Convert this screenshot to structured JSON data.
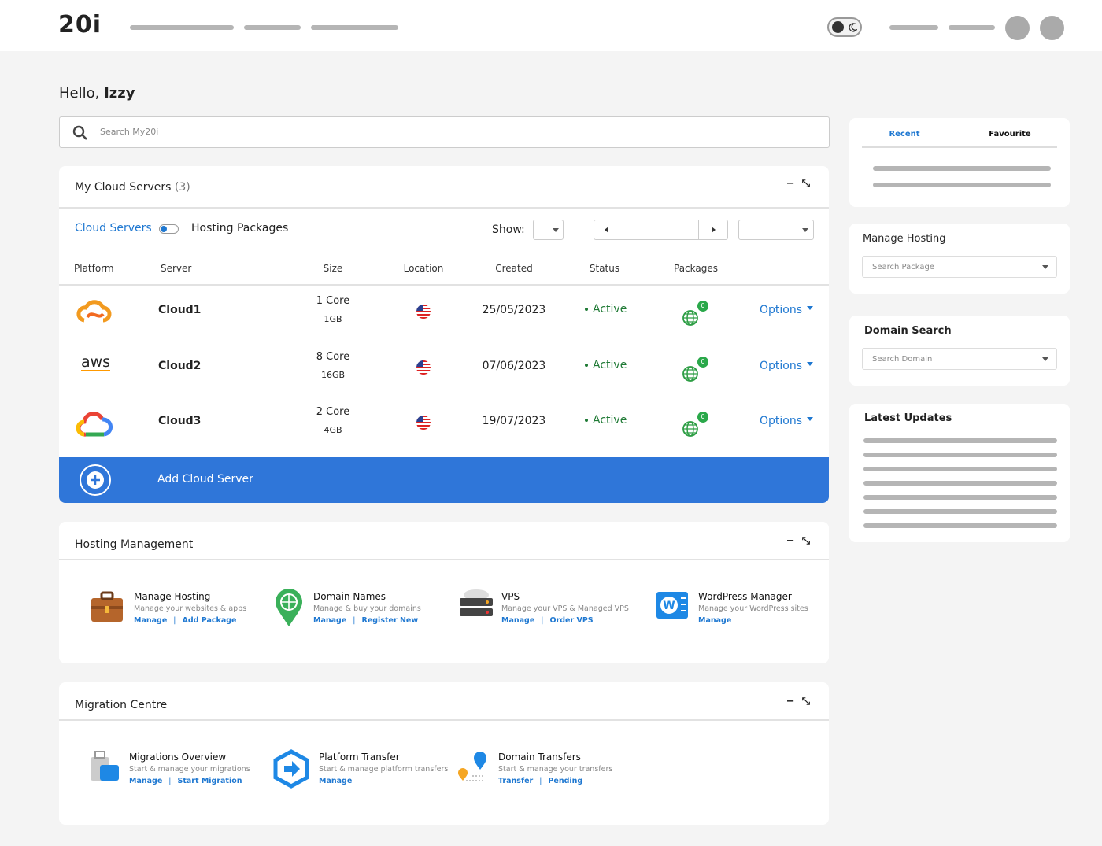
{
  "header": {
    "logo": "20i"
  },
  "greeting": {
    "prefix": "Hello,",
    "name": "Izzy"
  },
  "search": {
    "placeholder": "Search My20i"
  },
  "cloud_servers": {
    "title": "My Cloud Servers",
    "count": "(3)",
    "toggle_left": "Cloud Servers",
    "toggle_right": "Hosting Packages",
    "show_label": "Show:",
    "columns": [
      "Platform",
      "Server",
      "Size",
      "Location",
      "Created",
      "Status",
      "Packages"
    ],
    "rows": [
      {
        "server": "Cloud1",
        "cores": "1 Core",
        "memory": "1GB",
        "created": "25/05/2023",
        "status": "Active",
        "packages": "0",
        "options": "Options"
      },
      {
        "logo_text": "aws",
        "server": "Cloud2",
        "cores": "8 Core",
        "memory": "16GB",
        "created": "07/06/2023",
        "status": "Active",
        "packages": "0",
        "options": "Options"
      },
      {
        "server": "Cloud3",
        "cores": "2 Core",
        "memory": "4GB",
        "created": "19/07/2023",
        "status": "Active",
        "packages": "0",
        "options": "Options"
      }
    ],
    "add_label": "Add Cloud Server"
  },
  "hosting_management": {
    "title": "Hosting Management",
    "items": [
      {
        "title": "Manage Hosting",
        "description": "Manage your websites & apps",
        "links": [
          "Manage",
          "Add Package"
        ]
      },
      {
        "title": "Domain Names",
        "description": "Manage & buy your domains",
        "links": [
          "Manage",
          "Register New"
        ]
      },
      {
        "title": "VPS",
        "description": "Manage your VPS & Managed VPS",
        "links": [
          "Manage",
          "Order VPS"
        ]
      },
      {
        "title": "WordPress Manager",
        "description": "Manage your WordPress sites",
        "links": [
          "Manage"
        ]
      }
    ]
  },
  "migration_centre": {
    "title": "Migration Centre",
    "items": [
      {
        "title": "Migrations Overview",
        "description": "Start & manage your migrations",
        "links": [
          "Manage",
          "Start Migration"
        ]
      },
      {
        "title": "Platform Transfer",
        "description": "Start & manage platform transfers",
        "links": [
          "Manage"
        ]
      },
      {
        "title": "Domain Transfers",
        "description": "Start & manage your transfers",
        "links": [
          "Transfer",
          "Pending"
        ]
      }
    ]
  },
  "sidebar": {
    "tabs": [
      "Recent",
      "Favourite"
    ],
    "manage_hosting": {
      "title": "Manage Hosting",
      "placeholder": "Search Package"
    },
    "domain_search": {
      "title": "Domain Search",
      "placeholder": "Search Domain"
    },
    "latest_updates": {
      "title": "Latest Updates"
    }
  }
}
